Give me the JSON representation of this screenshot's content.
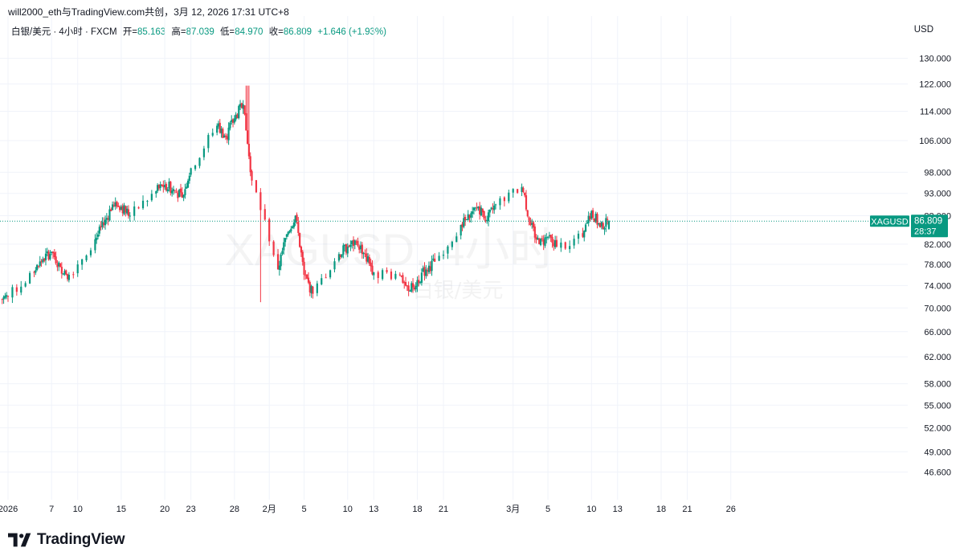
{
  "caption": "will2000_eth与TradingView.com共创，3月 12, 2026 17:31 UTC+8",
  "legend": {
    "symbol_desc": "白银/美元 · 4小时 · FXCM",
    "open_label": "开=",
    "open": "85.163",
    "high_label": "高=",
    "high": "87.039",
    "low_label": "低=",
    "low": "84.970",
    "close_label": "收=",
    "close": "86.809",
    "change": "+1.646 (+1.93%)"
  },
  "currency": "USD",
  "brand": "TradingView",
  "colors": {
    "up": "#089981",
    "down": "#F23645",
    "price_line": "#089981",
    "grid": "#f0f3fa"
  },
  "chart_data": {
    "type": "candlestick",
    "symbol": "XAGUSD",
    "watermark_symbol": "XAGUSD, 4小时",
    "watermark_desc": "白银/美元",
    "y_scale": "log",
    "ylim": [
      43.5,
      136
    ],
    "y_ticks": [
      "130.000",
      "122.000",
      "114.000",
      "106.000",
      "98.000",
      "93.000",
      "88.000",
      "82.000",
      "78.000",
      "74.000",
      "70.000",
      "66.000",
      "62.000",
      "58.000",
      "55.000",
      "52.000",
      "49.000",
      "46.600"
    ],
    "x_ticks": [
      "2026",
      "7",
      "10",
      "15",
      "20",
      "23",
      "28",
      "2月",
      "5",
      "10",
      "13",
      "18",
      "21",
      "3月",
      "5",
      "10",
      "13",
      "18",
      "21",
      "26"
    ],
    "last_price": {
      "label": "XAGUSD",
      "price": "86.809",
      "countdown": "28:37",
      "value": 86.809
    },
    "daily_closes": [
      {
        "d": "2026-01-02",
        "c": 72.0
      },
      {
        "d": "2026-01-05",
        "c": 76.5
      },
      {
        "d": "2026-01-06",
        "c": 79.0
      },
      {
        "d": "2026-01-07",
        "c": 80.5
      },
      {
        "d": "2026-01-08",
        "c": 77.5
      },
      {
        "d": "2026-01-09",
        "c": 76.0
      },
      {
        "d": "2026-01-12",
        "c": 83.0
      },
      {
        "d": "2026-01-13",
        "c": 86.0
      },
      {
        "d": "2026-01-14",
        "c": 90.5
      },
      {
        "d": "2026-01-15",
        "c": 90.0
      },
      {
        "d": "2026-01-16",
        "c": 88.0
      },
      {
        "d": "2026-01-19",
        "c": 93.5
      },
      {
        "d": "2026-01-20",
        "c": 95.0
      },
      {
        "d": "2026-01-21",
        "c": 94.0
      },
      {
        "d": "2026-01-22",
        "c": 92.0
      },
      {
        "d": "2026-01-23",
        "c": 99.0
      },
      {
        "d": "2026-01-26",
        "c": 110.0
      },
      {
        "d": "2026-01-27",
        "c": 107.0
      },
      {
        "d": "2026-01-28",
        "c": 112.0
      },
      {
        "d": "2026-01-29",
        "c": 116.0
      },
      {
        "d": "2026-01-30",
        "c": 96.0
      },
      {
        "d": "2026-02-02",
        "c": 77.0
      },
      {
        "d": "2026-02-03",
        "c": 84.0
      },
      {
        "d": "2026-02-04",
        "c": 88.0
      },
      {
        "d": "2026-02-05",
        "c": 76.0
      },
      {
        "d": "2026-02-06",
        "c": 72.5
      },
      {
        "d": "2026-02-09",
        "c": 80.0
      },
      {
        "d": "2026-02-10",
        "c": 81.5
      },
      {
        "d": "2026-02-11",
        "c": 82.5
      },
      {
        "d": "2026-02-12",
        "c": 80.0
      },
      {
        "d": "2026-02-13",
        "c": 76.5
      },
      {
        "d": "2026-02-16",
        "c": 76.0
      },
      {
        "d": "2026-02-17",
        "c": 73.0
      },
      {
        "d": "2026-02-18",
        "c": 75.0
      },
      {
        "d": "2026-02-19",
        "c": 77.0
      },
      {
        "d": "2026-02-20",
        "c": 78.5
      },
      {
        "d": "2026-02-23",
        "c": 86.0
      },
      {
        "d": "2026-02-24",
        "c": 87.5
      },
      {
        "d": "2026-02-25",
        "c": 90.0
      },
      {
        "d": "2026-02-26",
        "c": 87.0
      },
      {
        "d": "2026-02-27",
        "c": 90.5
      },
      {
        "d": "2026-03-02",
        "c": 94.5
      },
      {
        "d": "2026-03-03",
        "c": 86.0
      },
      {
        "d": "2026-03-04",
        "c": 82.0
      },
      {
        "d": "2026-03-05",
        "c": 83.5
      },
      {
        "d": "2026-03-06",
        "c": 81.5
      },
      {
        "d": "2026-03-09",
        "c": 83.5
      },
      {
        "d": "2026-03-10",
        "c": 89.0
      },
      {
        "d": "2026-03-11",
        "c": 85.5
      },
      {
        "d": "2026-03-12",
        "c": 86.809
      }
    ],
    "final_candle": {
      "o": 85.163,
      "h": 87.039,
      "l": 84.97,
      "c": 86.809
    }
  }
}
